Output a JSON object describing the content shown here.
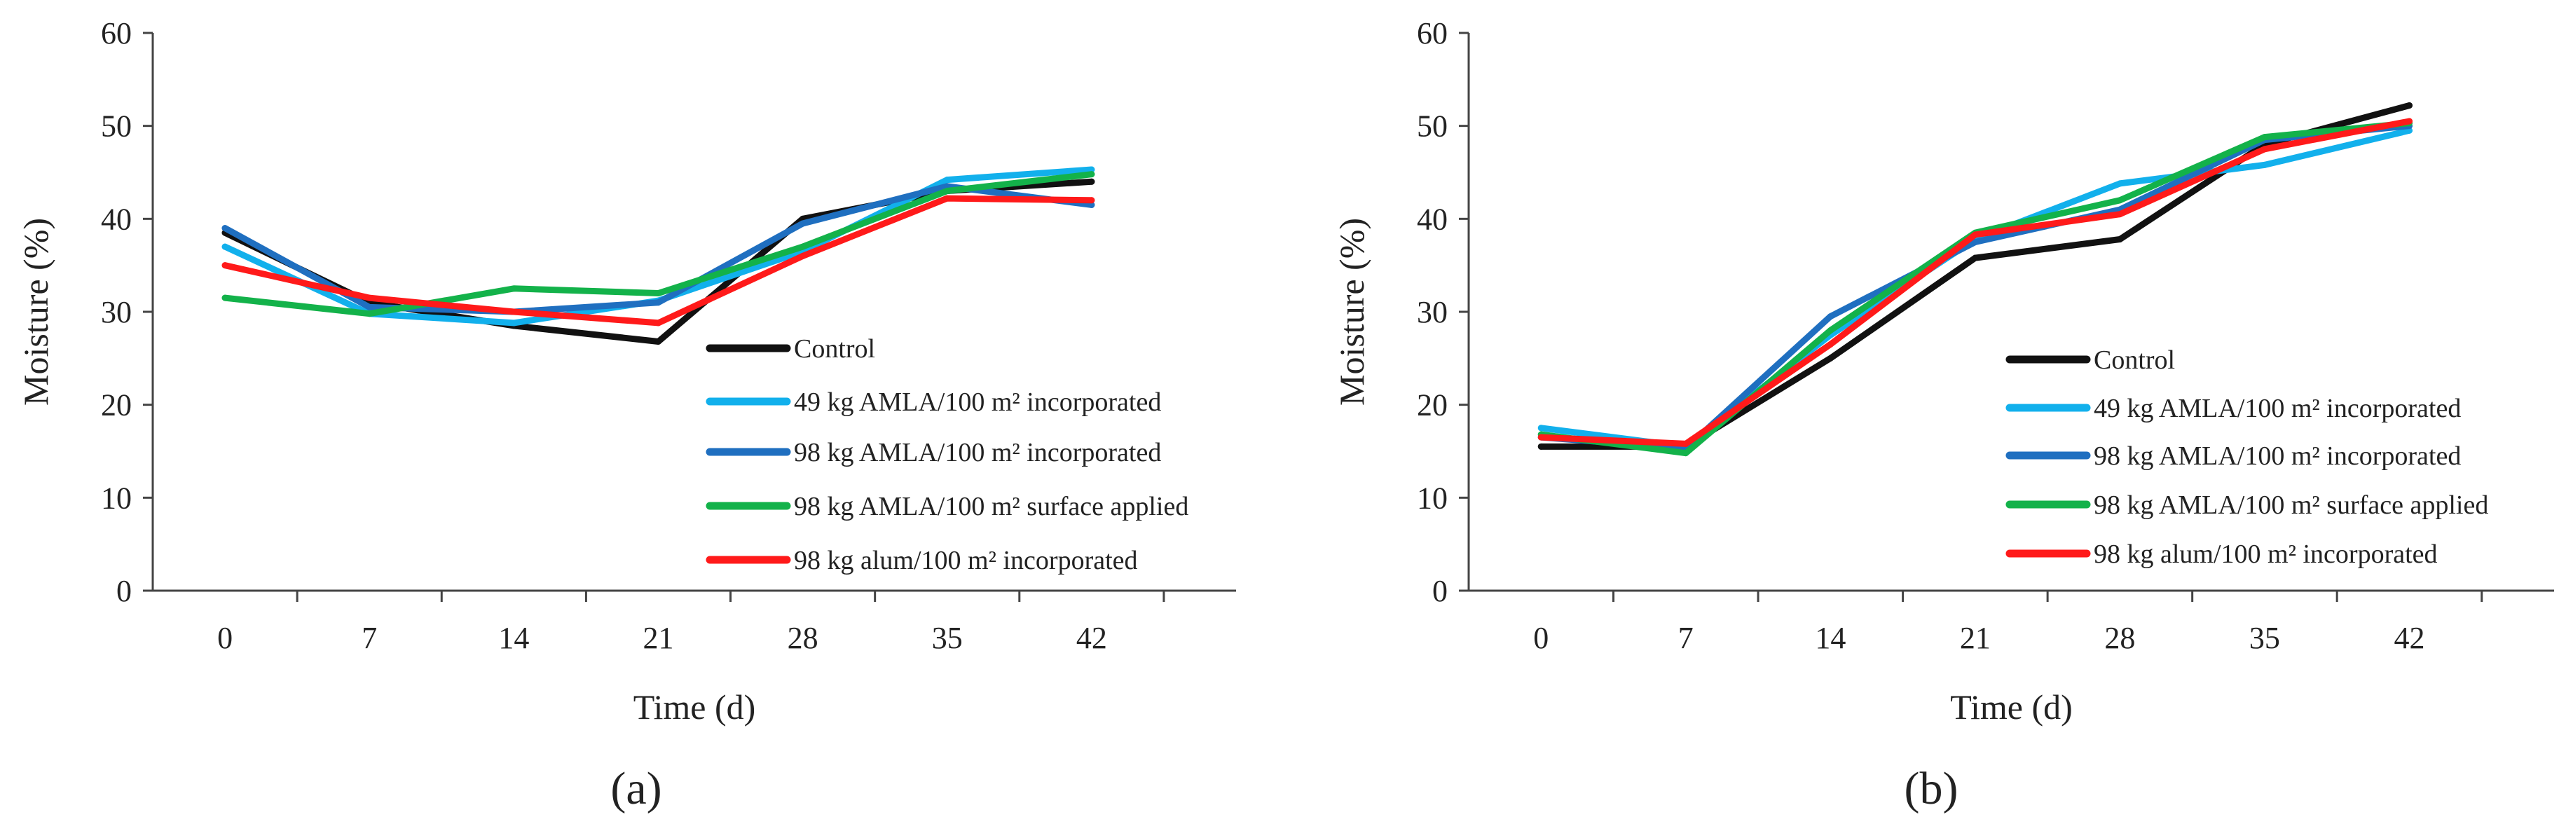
{
  "chart_data": [
    {
      "type": "line",
      "panel_label": "(a)",
      "xlabel": "Time (d)",
      "ylabel": "Moisture (%)",
      "categories": [
        "0",
        "7",
        "14",
        "21",
        "28",
        "35",
        "42"
      ],
      "ylim": [
        0,
        60
      ],
      "yticks": [
        "0",
        "10",
        "20",
        "30",
        "40",
        "50",
        "60"
      ],
      "legend_position": "lower-right",
      "series": [
        {
          "name": "Control",
          "color": "#111111",
          "values": [
            38.5,
            31.0,
            28.5,
            26.8,
            40.0,
            43.0,
            44.0
          ]
        },
        {
          "name": "49 kg AMLA/100 m² incorporated",
          "color": "#12b0ec",
          "values": [
            37.0,
            29.8,
            28.8,
            31.2,
            36.5,
            44.2,
            45.3
          ]
        },
        {
          "name": "98 kg AMLA/100 m² incorporated",
          "color": "#1f6fc0",
          "values": [
            39.0,
            30.5,
            30.0,
            31.0,
            39.5,
            43.5,
            41.5
          ]
        },
        {
          "name": "98 kg AMLA/100 m² surface applied",
          "color": "#13b24a",
          "values": [
            31.5,
            29.8,
            32.5,
            32.0,
            37.0,
            43.0,
            44.8
          ]
        },
        {
          "name": "98 kg alum/100 m² incorporated",
          "color": "#ff1a1a",
          "values": [
            35.0,
            31.5,
            30.0,
            28.8,
            36.0,
            42.2,
            42.0
          ]
        }
      ]
    },
    {
      "type": "line",
      "panel_label": "(b)",
      "xlabel": "Time (d)",
      "ylabel": "Moisture (%)",
      "categories": [
        "0",
        "7",
        "14",
        "21",
        "28",
        "35",
        "42"
      ],
      "ylim": [
        0,
        60
      ],
      "yticks": [
        "0",
        "10",
        "20",
        "30",
        "40",
        "50",
        "60"
      ],
      "legend_position": "lower-right",
      "series": [
        {
          "name": "Control",
          "color": "#111111",
          "values": [
            15.5,
            15.5,
            25.0,
            35.8,
            37.8,
            48.0,
            52.2
          ]
        },
        {
          "name": "49 kg AMLA/100 m² incorporated",
          "color": "#12b0ec",
          "values": [
            17.5,
            15.5,
            27.5,
            37.8,
            43.8,
            45.8,
            49.5
          ]
        },
        {
          "name": "98 kg AMLA/100 m² incorporated",
          "color": "#1f6fc0",
          "values": [
            16.5,
            15.3,
            29.5,
            37.5,
            41.0,
            48.5,
            50.0
          ]
        },
        {
          "name": "98 kg AMLA/100 m² surface applied",
          "color": "#13b24a",
          "values": [
            16.8,
            14.8,
            28.0,
            38.5,
            42.0,
            48.8,
            50.3
          ]
        },
        {
          "name": "98 kg alum/100 m² incorporated",
          "color": "#ff1a1a",
          "values": [
            16.5,
            15.8,
            26.5,
            38.3,
            40.5,
            47.5,
            50.5
          ]
        }
      ]
    }
  ]
}
